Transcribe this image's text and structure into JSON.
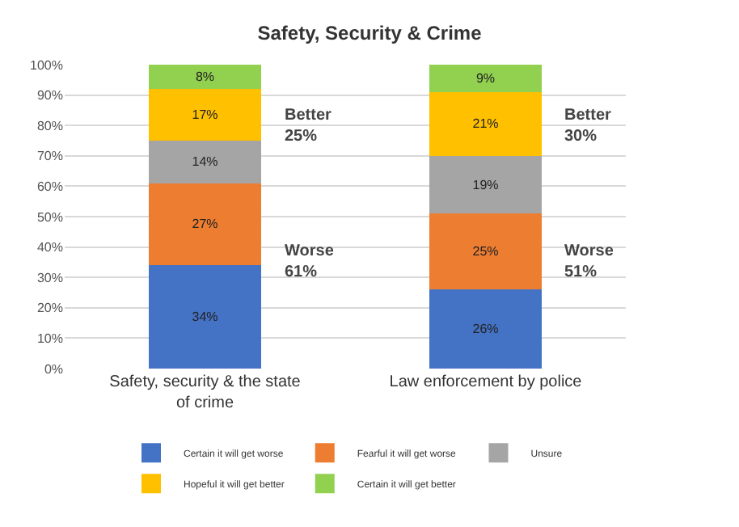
{
  "chart_data": {
    "type": "bar",
    "title": "Safety, Security & Crime",
    "stacked": true,
    "categories": [
      "Safety, security & the state of crime",
      "Law enforcement by police"
    ],
    "series": [
      {
        "name": "Certain it will get worse",
        "color": "#4472c4",
        "values": [
          34,
          26
        ],
        "value_labels": [
          "34%",
          "26%"
        ]
      },
      {
        "name": "Fearful it will get worse",
        "color": "#ed7d31",
        "values": [
          27,
          25
        ],
        "value_labels": [
          "27%",
          "25%"
        ]
      },
      {
        "name": "Unsure",
        "color": "#a5a5a5",
        "values": [
          14,
          19
        ],
        "value_labels": [
          "14%",
          "19%"
        ]
      },
      {
        "name": "Hopeful it will get better",
        "color": "#ffc000",
        "values": [
          17,
          21
        ],
        "value_labels": [
          "17%",
          "21%"
        ]
      },
      {
        "name": "Certain it will get better",
        "color": "#92d050",
        "values": [
          8,
          9
        ],
        "value_labels": [
          "8%",
          "9%"
        ]
      }
    ],
    "ylim": [
      0,
      100
    ],
    "yticks": [
      {
        "value": 0,
        "label": "0%"
      },
      {
        "value": 10,
        "label": "10%"
      },
      {
        "value": 20,
        "label": "20%"
      },
      {
        "value": 30,
        "label": "30%"
      },
      {
        "value": 40,
        "label": "40%"
      },
      {
        "value": 50,
        "label": "50%"
      },
      {
        "value": 60,
        "label": "60%"
      },
      {
        "value": 70,
        "label": "70%"
      },
      {
        "value": 80,
        "label": "80%"
      },
      {
        "value": 90,
        "label": "90%"
      },
      {
        "value": 100,
        "label": "100%"
      }
    ],
    "grid": "y",
    "legend": "bottom",
    "annotations": [
      "Better\n25%",
      "Worse\n61%",
      "Better\n30%",
      "Worse\n51%"
    ]
  }
}
